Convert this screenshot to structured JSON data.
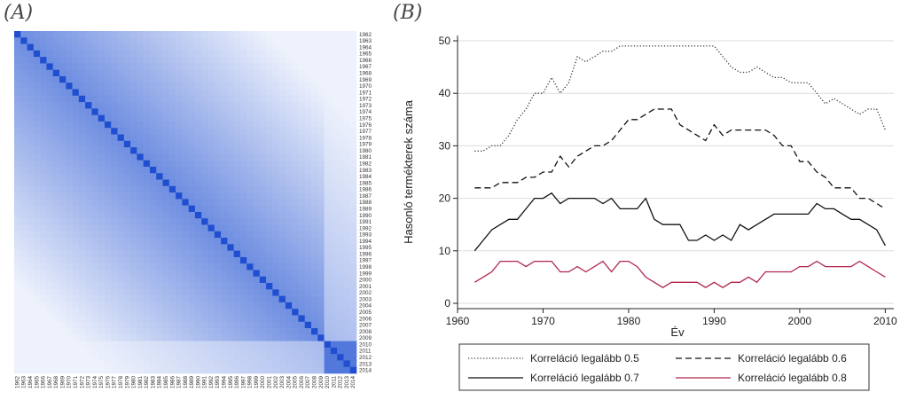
{
  "panels": {
    "a_label": "(A)",
    "b_label": "(B)"
  },
  "heatmap": {
    "years": [
      1962,
      1963,
      1964,
      1965,
      1966,
      1967,
      1968,
      1969,
      1970,
      1971,
      1972,
      1973,
      1974,
      1975,
      1976,
      1977,
      1978,
      1979,
      1980,
      1981,
      1982,
      1983,
      1984,
      1985,
      1986,
      1987,
      1988,
      1989,
      1990,
      1991,
      1992,
      1993,
      1994,
      1995,
      1996,
      1997,
      1998,
      1999,
      2000,
      2001,
      2002,
      2003,
      2004,
      2005,
      2006,
      2007,
      2008,
      2009,
      2010,
      2011,
      2012,
      2013,
      2014
    ],
    "color_low": "#eef2fc",
    "color_high": "#1f4fd0"
  },
  "chart_data": {
    "type": "line",
    "xlabel": "Év",
    "ylabel": "Hasonló termékterek száma",
    "xlim": [
      1960,
      2011
    ],
    "ylim": [
      0,
      50
    ],
    "xticks": [
      1960,
      1970,
      1980,
      1990,
      2000,
      2010
    ],
    "yticks": [
      0,
      10,
      20,
      30,
      40,
      50
    ],
    "grid": "horizontal",
    "legend_position": "bottom",
    "x": [
      1962,
      1963,
      1964,
      1965,
      1966,
      1967,
      1968,
      1969,
      1970,
      1971,
      1972,
      1973,
      1974,
      1975,
      1976,
      1977,
      1978,
      1979,
      1980,
      1981,
      1982,
      1983,
      1984,
      1985,
      1986,
      1987,
      1988,
      1989,
      1990,
      1991,
      1992,
      1993,
      1994,
      1995,
      1996,
      1997,
      1998,
      1999,
      2000,
      2001,
      2002,
      2003,
      2004,
      2005,
      2006,
      2007,
      2008,
      2009,
      2010
    ],
    "series": [
      {
        "name": "Korreláció legalább 0.5",
        "style": "dotted",
        "color": "#333333",
        "values": [
          29,
          29,
          30,
          30,
          32,
          35,
          37,
          40,
          40,
          43,
          40,
          42,
          47,
          46,
          47,
          48,
          48,
          49,
          49,
          49,
          49,
          49,
          49,
          49,
          49,
          49,
          49,
          49,
          49,
          47,
          45,
          44,
          44,
          45,
          44,
          43,
          43,
          42,
          42,
          42,
          40,
          38,
          39,
          38,
          37,
          36,
          37,
          37,
          33
        ]
      },
      {
        "name": "Korreláció legalább 0.6",
        "style": "dashed",
        "color": "#111111",
        "values": [
          22,
          22,
          22,
          23,
          23,
          23,
          24,
          24,
          25,
          25,
          28,
          26,
          28,
          29,
          30,
          30,
          31,
          33,
          35,
          35,
          36,
          37,
          37,
          37,
          34,
          33,
          32,
          31,
          34,
          32,
          33,
          33,
          33,
          33,
          33,
          32,
          30,
          30,
          27,
          27,
          25,
          24,
          22,
          22,
          22,
          20,
          20,
          19,
          18
        ]
      },
      {
        "name": "Korreláció legalább 0.7",
        "style": "solid",
        "color": "#111111",
        "values": [
          10,
          12,
          14,
          15,
          16,
          16,
          18,
          20,
          20,
          21,
          19,
          20,
          20,
          20,
          20,
          19,
          20,
          18,
          18,
          18,
          20,
          16,
          15,
          15,
          15,
          12,
          12,
          13,
          12,
          13,
          12,
          15,
          14,
          15,
          16,
          17,
          17,
          17,
          17,
          17,
          19,
          18,
          18,
          17,
          16,
          16,
          15,
          14,
          11
        ]
      },
      {
        "name": "Korreláció legalább 0.8",
        "style": "solid",
        "color": "#b0264b",
        "values": [
          4,
          5,
          6,
          8,
          8,
          8,
          7,
          8,
          8,
          8,
          6,
          6,
          7,
          6,
          7,
          8,
          6,
          8,
          8,
          7,
          5,
          4,
          3,
          4,
          4,
          4,
          4,
          3,
          4,
          3,
          4,
          4,
          5,
          4,
          6,
          6,
          6,
          6,
          7,
          7,
          8,
          7,
          7,
          7,
          7,
          8,
          7,
          6,
          5
        ]
      }
    ]
  }
}
